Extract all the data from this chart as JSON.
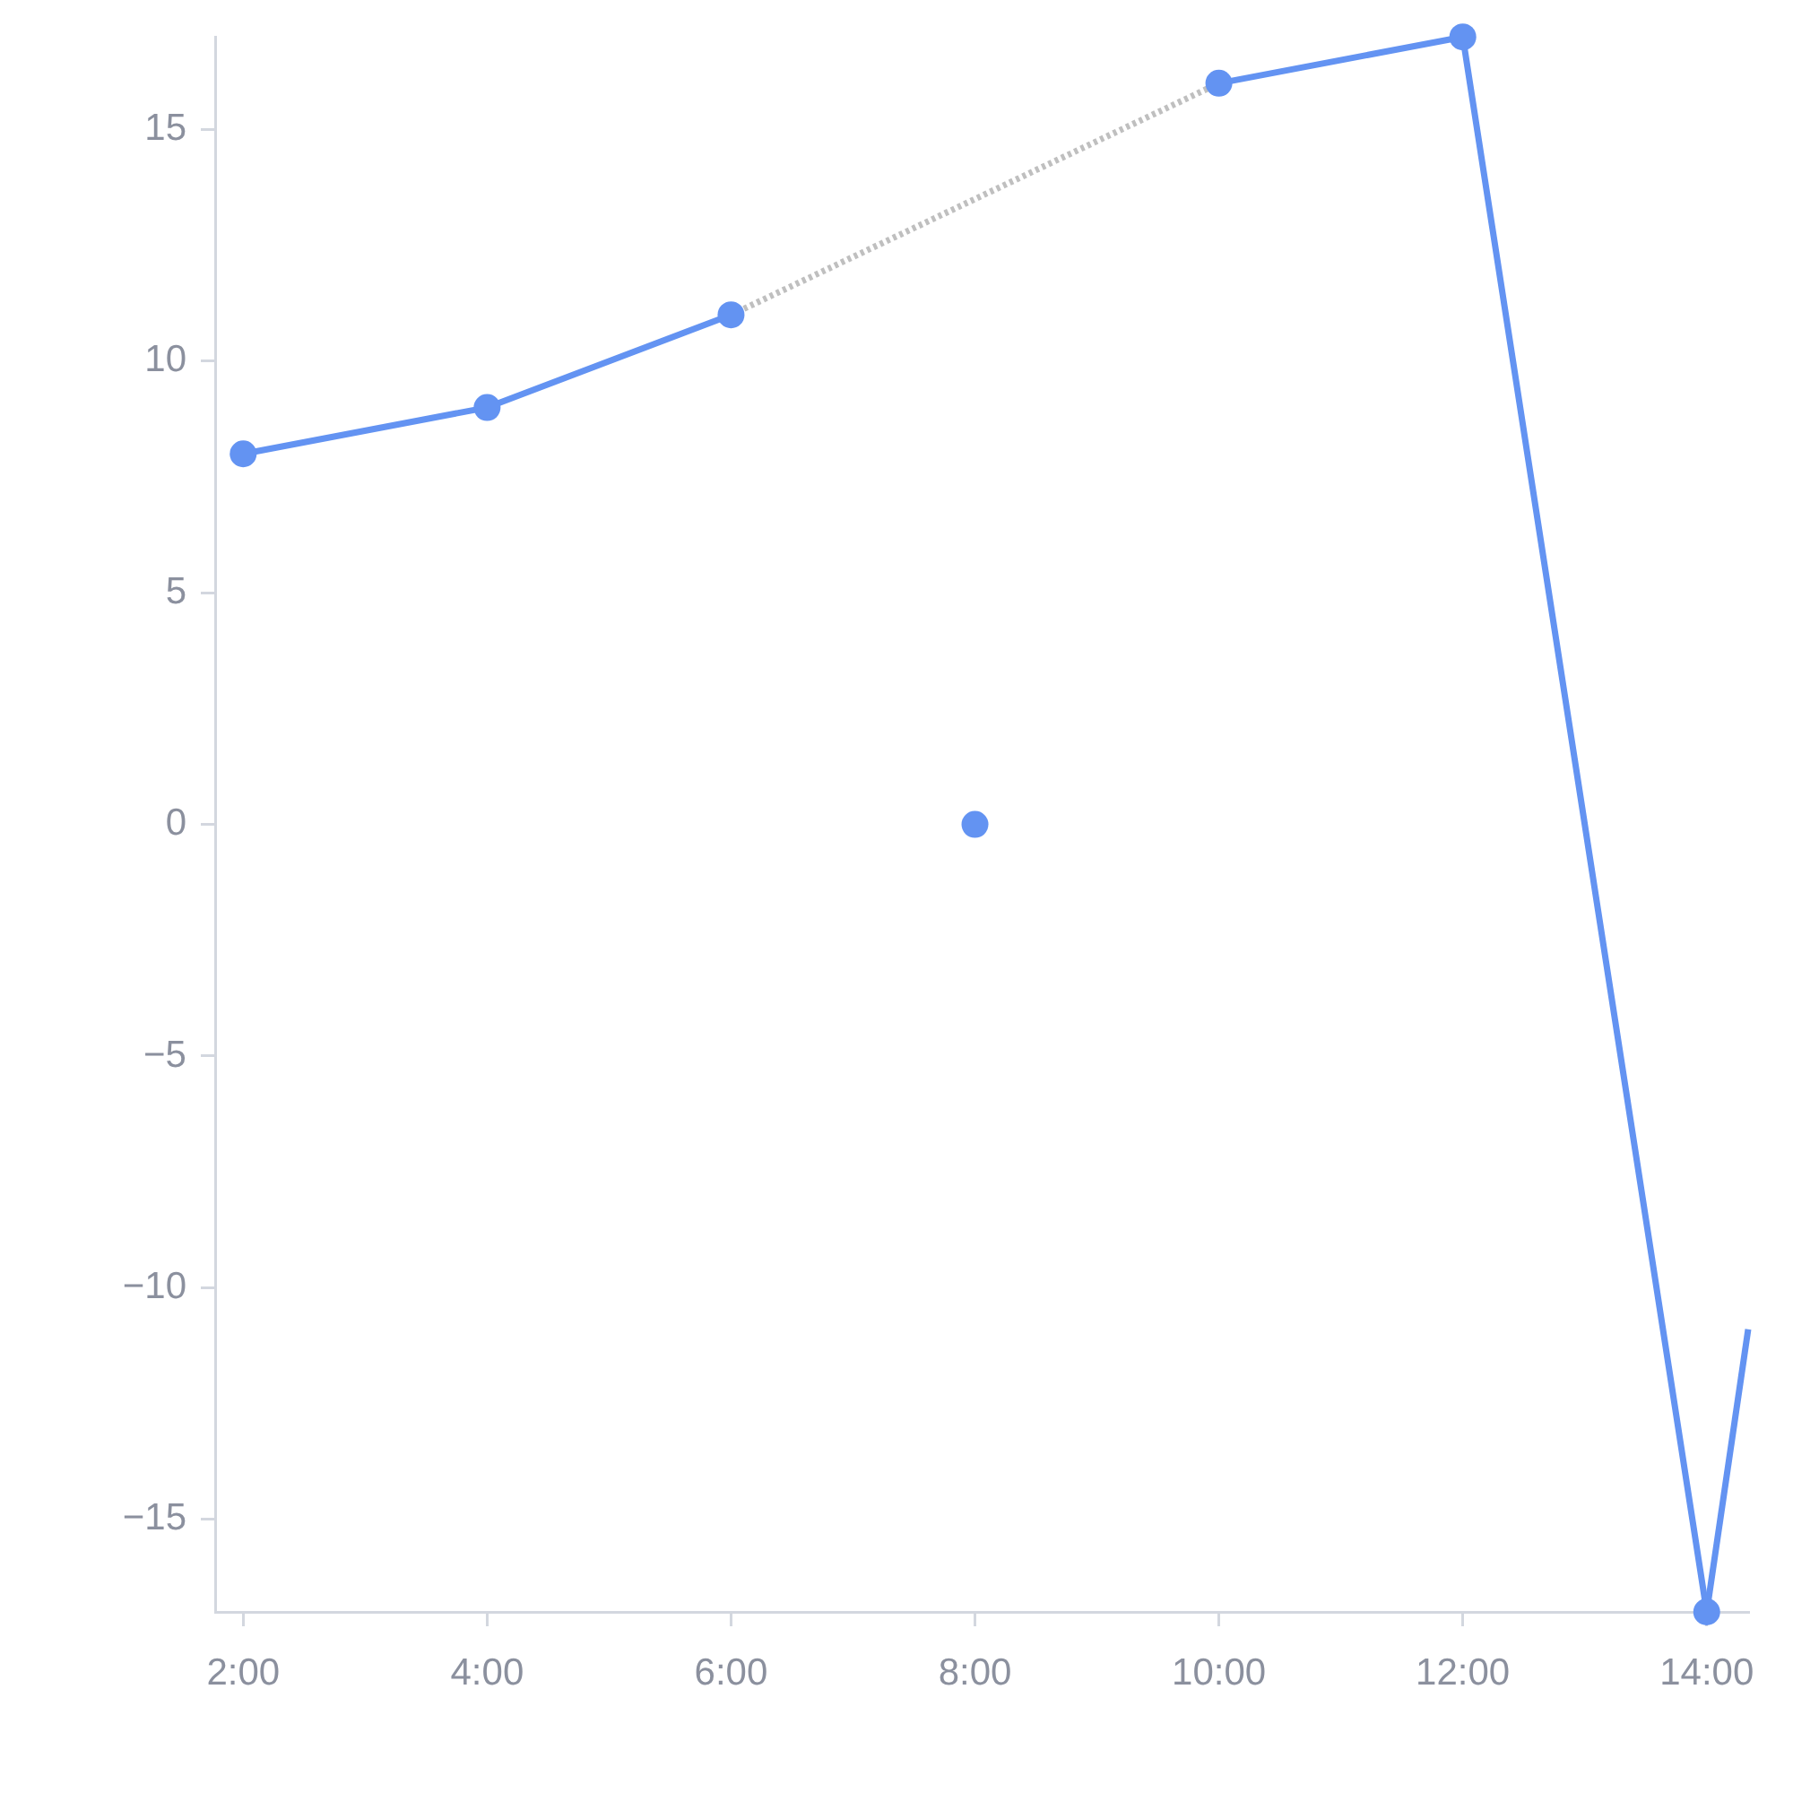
{
  "chart_data": {
    "type": "line",
    "x": [
      2,
      4,
      6,
      8,
      10,
      12,
      14
    ],
    "xlim": [
      1.77,
      14.34
    ],
    "xticks": [
      {
        "value": 2,
        "label": "2:00"
      },
      {
        "value": 4,
        "label": "4:00"
      },
      {
        "value": 6,
        "label": "6:00"
      },
      {
        "value": 8,
        "label": "8:00"
      },
      {
        "value": 10,
        "label": "10:00"
      },
      {
        "value": 12,
        "label": "12:00"
      },
      {
        "value": 14,
        "label": "14:00"
      }
    ],
    "ylim": [
      -17,
      17
    ],
    "yticks": [
      {
        "value": -15,
        "label": "−15"
      },
      {
        "value": -10,
        "label": "−10"
      },
      {
        "value": -5,
        "label": "−5"
      },
      0,
      5,
      10,
      15
    ],
    "series": [
      {
        "color": "#6393f2",
        "values": [
          8,
          9,
          11,
          null,
          16,
          17,
          -17
        ],
        "marker": "circle",
        "line_style": "solid"
      },
      {
        "type": "line",
        "color": "#bfbfbf",
        "x": [
          6,
          10
        ],
        "values": [
          11,
          16
        ],
        "marker": "none",
        "line_style": "dotted"
      },
      {
        "type": "scatter",
        "color": "#6393f2",
        "x": [
          8
        ],
        "values": [
          0
        ],
        "marker": "circle"
      },
      {
        "type": "line",
        "color": "#6393f2",
        "x": [
          14,
          14.34
        ],
        "values": [
          -17,
          -10.9
        ],
        "marker": "none",
        "line_style": "solid"
      }
    ]
  }
}
